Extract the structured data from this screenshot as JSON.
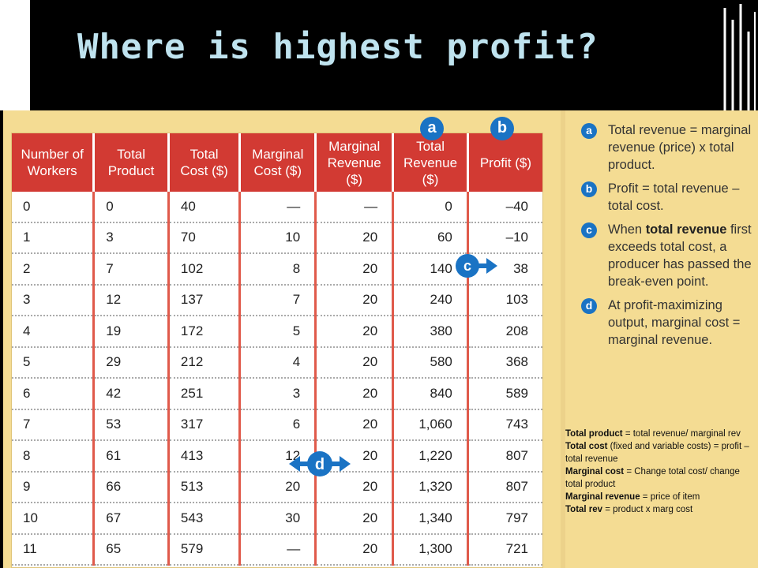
{
  "slide": {
    "title": "Where is highest profit?"
  },
  "table": {
    "headers": [
      "Number of\nWorkers",
      "Total\nProduct",
      "Total\nCost ($)",
      "Marginal\nCost ($)",
      "Marginal\nRevenue\n($)",
      "Total\nRevenue\n($)",
      "Profit ($)"
    ],
    "rows": [
      [
        "0",
        "0",
        "40",
        "—",
        "—",
        "0",
        "–40"
      ],
      [
        "1",
        "3",
        "70",
        "10",
        "20",
        "60",
        "–10"
      ],
      [
        "2",
        "7",
        "102",
        "8",
        "20",
        "140",
        "38"
      ],
      [
        "3",
        "12",
        "137",
        "7",
        "20",
        "240",
        "103"
      ],
      [
        "4",
        "19",
        "172",
        "5",
        "20",
        "380",
        "208"
      ],
      [
        "5",
        "29",
        "212",
        "4",
        "20",
        "580",
        "368"
      ],
      [
        "6",
        "42",
        "251",
        "3",
        "20",
        "840",
        "589"
      ],
      [
        "7",
        "53",
        "317",
        "6",
        "20",
        "1,060",
        "743"
      ],
      [
        "8",
        "61",
        "413",
        "12",
        "20",
        "1,220",
        "807"
      ],
      [
        "9",
        "66",
        "513",
        "20",
        "20",
        "1,320",
        "807"
      ],
      [
        "10",
        "67",
        "543",
        "30",
        "20",
        "1,340",
        "797"
      ],
      [
        "11",
        "65",
        "579",
        "—",
        "20",
        "1,300",
        "721"
      ]
    ]
  },
  "badges": {
    "a": "a",
    "b": "b",
    "c": "c",
    "d": "d"
  },
  "notes": {
    "a_text": "Total revenue = marginal revenue (price) x total product.",
    "b_text": "Profit = total revenue – total cost.",
    "c_pre": "When ",
    "c_bold": "total revenue",
    "c_post": " first exceeds total cost, a producer has passed the break-even point.",
    "d_text": "At profit-maximizing output, marginal cost = marginal revenue."
  },
  "definitions": [
    {
      "term": "Total product",
      "text": " = total revenue/ marginal rev"
    },
    {
      "term": "Total cost",
      "text": " (fixed and variable costs) = profit – total revenue"
    },
    {
      "term": "Marginal cost",
      "text": " =  Change total cost/ change total product"
    },
    {
      "term": "Marginal revenue",
      "text": " = price of item"
    },
    {
      "term": "Total rev",
      "text": " = product x marg cost"
    }
  ],
  "colors": {
    "background": "#000000",
    "title": "#bfe3ef",
    "panel": "#f4dc93",
    "header": "#d23a33",
    "badge": "#1a73c4"
  }
}
